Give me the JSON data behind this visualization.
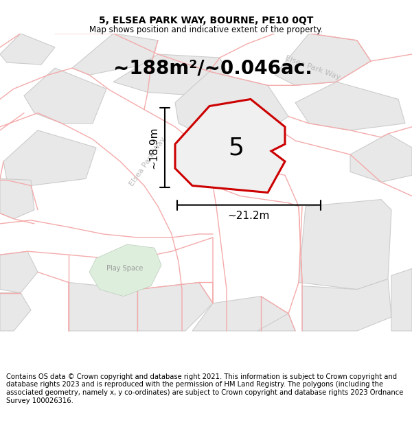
{
  "title": "5, ELSEA PARK WAY, BOURNE, PE10 0QT",
  "subtitle": "Map shows position and indicative extent of the property.",
  "area_text": "~188m²/~0.046ac.",
  "label_number": "5",
  "dim_width": "~21.2m",
  "dim_height": "~18.9m",
  "footer": "Contains OS data © Crown copyright and database right 2021. This information is subject to Crown copyright and database rights 2023 and is reproduced with the permission of HM Land Registry. The polygons (including the associated geometry, namely x, y co-ordinates) are subject to Crown copyright and database rights 2023 Ordnance Survey 100026316.",
  "bg_color": "#ffffff",
  "map_bg": "#ffffff",
  "road_color": "#f4aaaa",
  "parcel_fill": "#e8e8e8",
  "parcel_edge": "#cccccc",
  "plot_fill": "#f0f0f0",
  "plot_border": "#cc0000",
  "play_space_fill": "#ddeedd",
  "play_space_edge": "#bbccbb",
  "title_fontsize": 10,
  "subtitle_fontsize": 8.5,
  "area_fontsize": 20,
  "number_fontsize": 26,
  "dim_fontsize": 11,
  "footer_fontsize": 7.2,
  "road_label_color": "#bbbbbb",
  "road_lw": 1.0,
  "parcel_lw": 0.8
}
